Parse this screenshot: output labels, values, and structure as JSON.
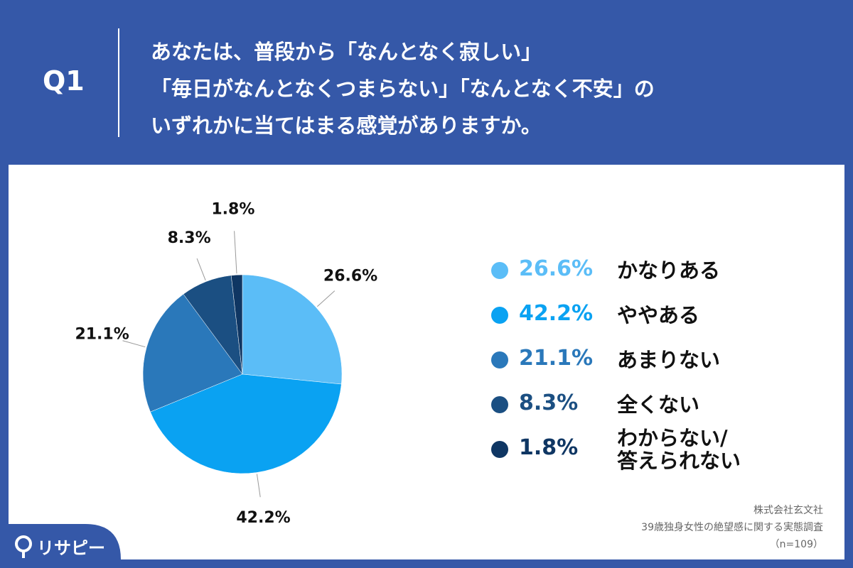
{
  "header": {
    "question": "Q1",
    "title_lines": [
      "あなたは、普段から「なんとなく寂しい」",
      "「毎日がなんとなくつまらない」「なんとなく不安」の",
      "いずれかに当てはまる感覚がありますか。"
    ]
  },
  "chart_data": {
    "type": "pie",
    "categories": [
      "かなりある",
      "ややある",
      "あまりない",
      "全くない",
      "わからない/\n答えられない"
    ],
    "values": [
      26.6,
      42.2,
      21.1,
      8.3,
      1.8
    ],
    "value_labels": [
      "26.6%",
      "42.2%",
      "21.1%",
      "8.3%",
      "1.8%"
    ],
    "colors": [
      "#5bbdf7",
      "#0aa2f2",
      "#2a78ba",
      "#1b4f82",
      "#0f3663"
    ]
  },
  "source": [
    "株式会社玄文社",
    "39歳独身女性の絶望感に関する実態調査",
    "（n=109）"
  ],
  "logo": "リサピー"
}
